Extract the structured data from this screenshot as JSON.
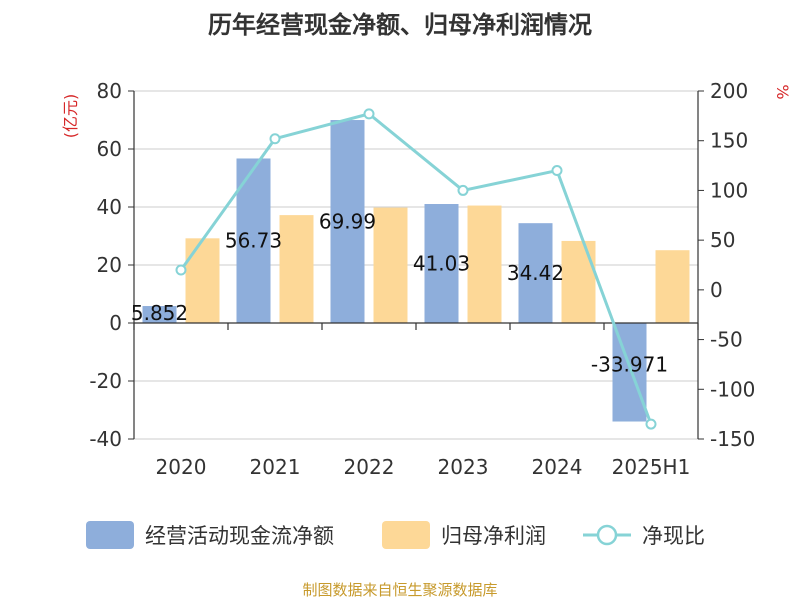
{
  "chart_data": {
    "type": "bar",
    "title": "历年经营现金净额、归母净利润情况",
    "categories": [
      "2020",
      "2021",
      "2022",
      "2023",
      "2024",
      "2025H1"
    ],
    "series": [
      {
        "name": "经营活动现金流净额",
        "kind": "bar",
        "axis": "left",
        "color": "#8eaedb",
        "values": [
          5.852,
          56.73,
          69.99,
          41.03,
          34.42,
          -33.971
        ],
        "labels": [
          "5.852",
          "56.73",
          "69.99",
          "41.03",
          "34.42",
          "-33.971"
        ]
      },
      {
        "name": "归母净利润",
        "kind": "bar",
        "axis": "left",
        "color": "#fdd897",
        "values": [
          29.2,
          37.2,
          39.8,
          40.5,
          28.3,
          25.1
        ]
      },
      {
        "name": "净现比",
        "kind": "line",
        "axis": "right",
        "color": "#86d3d6",
        "values": [
          20,
          152,
          177,
          100,
          120,
          -135
        ]
      }
    ],
    "y_left": {
      "unit": "(亿元)",
      "ylim": [
        -40,
        80
      ],
      "ticks": [
        80,
        60,
        40,
        20,
        0,
        -20,
        -40
      ]
    },
    "y_right": {
      "unit": "%",
      "ylim": [
        -150,
        200
      ],
      "ticks": [
        200,
        150,
        100,
        50,
        0,
        -50,
        -100,
        -150
      ]
    },
    "grid": true,
    "legend_position": "bottom"
  },
  "source": "制图数据来自恒生聚源数据库"
}
